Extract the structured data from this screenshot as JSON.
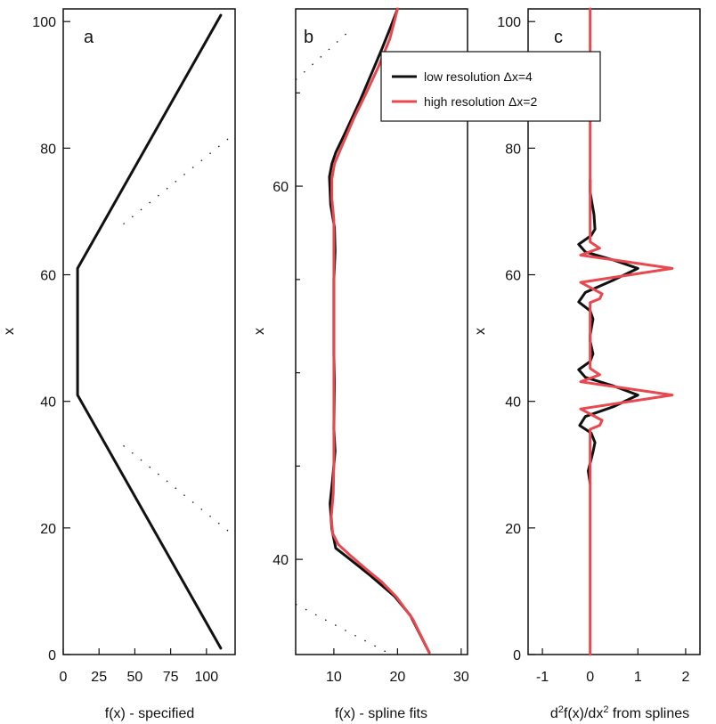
{
  "chart_data": [
    {
      "type": "line",
      "panel_label": "a",
      "xlabel": "f(x) - specified",
      "ylabel": "x",
      "xlim": [
        0,
        120
      ],
      "ylim": [
        0,
        102
      ],
      "xticks": [
        0,
        25,
        50,
        75,
        100
      ],
      "yticks": [
        0,
        20,
        40,
        60,
        80,
        100
      ],
      "series": [
        {
          "color": "#111111",
          "points": [
            [
              110,
              1
            ],
            [
              10,
              41
            ],
            [
              10,
              61
            ],
            [
              110,
              101
            ]
          ]
        }
      ],
      "dotted_guides": [
        {
          "from": [
            42,
            33
          ],
          "to": [
            118,
            19
          ]
        },
        {
          "from": [
            42,
            68
          ],
          "to": [
            118,
            82
          ]
        }
      ]
    },
    {
      "type": "line",
      "panel_label": "b",
      "xlabel": "f(x) - spline fits",
      "ylabel": "x",
      "xlim": [
        4,
        31
      ],
      "ylim": [
        34.9,
        69.5
      ],
      "xticks": [
        10,
        20,
        30
      ],
      "yticks": [
        40,
        60
      ],
      "yticks_minor": [
        45,
        50,
        55,
        65
      ],
      "series": [
        {
          "name": "low resolution Δx=4",
          "color": "#111111",
          "points": [
            [
              25,
              35
            ],
            [
              22,
              37
            ],
            [
              19.6,
              38
            ],
            [
              15.5,
              39.2
            ],
            [
              11.8,
              40.2
            ],
            [
              10.3,
              40.6
            ],
            [
              9.7,
              41.6
            ],
            [
              9.4,
              43
            ],
            [
              9.8,
              44.3
            ],
            [
              10.2,
              45.8
            ],
            [
              10,
              47
            ],
            [
              10.1,
              49.5
            ],
            [
              10,
              51
            ],
            [
              10,
              53
            ],
            [
              10,
              55
            ],
            [
              10.2,
              56.5
            ],
            [
              10.1,
              57.8
            ],
            [
              9.5,
              59
            ],
            [
              9.3,
              60.5
            ],
            [
              9.7,
              61.2
            ],
            [
              10.3,
              61.8
            ],
            [
              11.7,
              62.8
            ],
            [
              14,
              64.5
            ],
            [
              16,
              66.1
            ],
            [
              17.6,
              67.4
            ],
            [
              19,
              68.6
            ],
            [
              20,
              69.5
            ]
          ]
        },
        {
          "name": "high resolution Δx=2",
          "color": "#e8484e",
          "points": [
            [
              25,
              35
            ],
            [
              22.4,
              36.8
            ],
            [
              19.8,
              38
            ],
            [
              17.5,
              38.8
            ],
            [
              15,
              39.5
            ],
            [
              12.6,
              40.2
            ],
            [
              10.7,
              40.8
            ],
            [
              9.8,
              41.4
            ],
            [
              9.6,
              42.3
            ],
            [
              9.9,
              43.5
            ],
            [
              10,
              45
            ],
            [
              10,
              47
            ],
            [
              10,
              49
            ],
            [
              10,
              51
            ],
            [
              10,
              53
            ],
            [
              10,
              55
            ],
            [
              10,
              57
            ],
            [
              10,
              58.2
            ],
            [
              9.7,
              59.3
            ],
            [
              9.7,
              60.4
            ],
            [
              10.1,
              61.2
            ],
            [
              11.2,
              62.1
            ],
            [
              13.1,
              63.6
            ],
            [
              15.1,
              65
            ],
            [
              17,
              66.4
            ],
            [
              18.8,
              67.9
            ],
            [
              20,
              69.5
            ]
          ]
        }
      ],
      "legend": {
        "position": "top-right",
        "entries": [
          {
            "label": "low resolution Δx=4",
            "color": "#111111"
          },
          {
            "label": "high resolution Δx=2",
            "color": "#e8484e"
          }
        ]
      }
    },
    {
      "type": "line",
      "panel_label": "c",
      "xlabel": "d2f(x)/dx2 from splines",
      "ylabel": "x",
      "xlim": [
        -1.3,
        2.3
      ],
      "ylim": [
        0,
        102
      ],
      "xticks": [
        -1,
        0,
        1,
        2
      ],
      "yticks": [
        0,
        20,
        40,
        60,
        80,
        100
      ],
      "series": [
        {
          "name": "low resolution Δx=4",
          "color": "#111111",
          "points": [
            [
              0,
              27
            ],
            [
              -0.04,
              29
            ],
            [
              0.06,
              32
            ],
            [
              0.1,
              33.5
            ],
            [
              0.02,
              35
            ],
            [
              -0.22,
              36.2
            ],
            [
              -0.1,
              37.6
            ],
            [
              0.5,
              39.2
            ],
            [
              1,
              41
            ],
            [
              0.5,
              42.4
            ],
            [
              -0.1,
              43.8
            ],
            [
              -0.24,
              45
            ],
            [
              0,
              46.3
            ],
            [
              0.06,
              47.5
            ],
            [
              0,
              49.5
            ],
            [
              0,
              50.5
            ],
            [
              0.06,
              53
            ],
            [
              0,
              54.3
            ],
            [
              -0.24,
              55.7
            ],
            [
              -0.1,
              57.2
            ],
            [
              0.5,
              59.2
            ],
            [
              1,
              61
            ],
            [
              0.5,
              62.3
            ],
            [
              -0.1,
              63.6
            ],
            [
              -0.24,
              64.8
            ],
            [
              0.02,
              66.2
            ],
            [
              0.1,
              67.2
            ],
            [
              0.08,
              69.5
            ],
            [
              0,
              73
            ],
            [
              0,
              75
            ]
          ]
        },
        {
          "name": "high resolution Δx=2",
          "color": "#e8484e",
          "points": [
            [
              0,
              0
            ],
            [
              0,
              35.6
            ],
            [
              0.2,
              36.2
            ],
            [
              0.25,
              37
            ],
            [
              -0.2,
              38.8
            ],
            [
              1.72,
              41
            ],
            [
              -0.2,
              43.1
            ],
            [
              0.2,
              44.2
            ],
            [
              0,
              45.2
            ],
            [
              0,
              55.6
            ],
            [
              0.2,
              56.2
            ],
            [
              0.25,
              57
            ],
            [
              -0.2,
              58.8
            ],
            [
              1.72,
              61
            ],
            [
              -0.2,
              63.1
            ],
            [
              0.2,
              64.2
            ],
            [
              0,
              65.2
            ],
            [
              0,
              102
            ]
          ]
        }
      ]
    }
  ]
}
